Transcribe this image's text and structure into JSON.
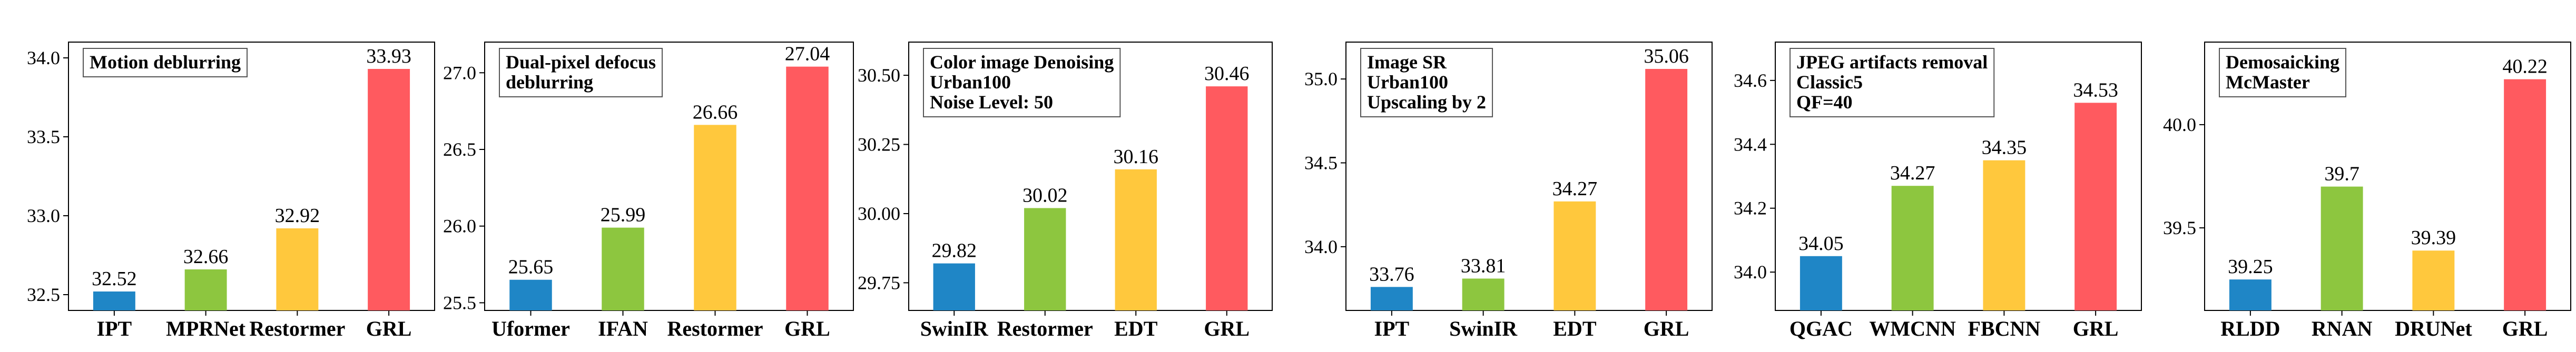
{
  "colors": {
    "blue": "#1f86c6",
    "green": "#8dc63f",
    "yellow": "#ffc83d",
    "red": "#ff5a5f"
  },
  "chart_data": [
    {
      "type": "bar",
      "label_lines": [
        "Motion deblurring"
      ],
      "categories": [
        "IPT",
        "MPRNet",
        "Restormer",
        "GRL"
      ],
      "values": [
        32.52,
        32.66,
        32.92,
        33.93
      ],
      "value_labels": [
        "32.52",
        "32.66",
        "32.92",
        "33.93"
      ],
      "ylim": [
        32.4,
        34.1
      ],
      "yticks": [
        32.5,
        33.0,
        33.5,
        34.0
      ],
      "ytick_labels": [
        "32.5",
        "33.0",
        "33.5",
        "34.0"
      ],
      "grid": false
    },
    {
      "type": "bar",
      "label_lines": [
        "Dual-pixel defocus",
        "deblurring"
      ],
      "categories": [
        "Uformer",
        "IFAN",
        "Restormer",
        "GRL"
      ],
      "values": [
        25.65,
        25.99,
        26.66,
        27.04
      ],
      "value_labels": [
        "25.65",
        "25.99",
        "26.66",
        "27.04"
      ],
      "ylim": [
        25.45,
        27.2
      ],
      "yticks": [
        25.5,
        26.0,
        26.5,
        27.0
      ],
      "ytick_labels": [
        "25.5",
        "26.0",
        "26.5",
        "27.0"
      ],
      "grid": false
    },
    {
      "type": "bar",
      "label_lines": [
        "Color image Denoising",
        "Urban100",
        "Noise Level: 50"
      ],
      "categories": [
        "SwinIR",
        "Restormer",
        "EDT",
        "GRL"
      ],
      "values": [
        29.82,
        30.02,
        30.16,
        30.46
      ],
      "value_labels": [
        "29.82",
        "30.02",
        "30.16",
        "30.46"
      ],
      "ylim": [
        29.65,
        30.62
      ],
      "yticks": [
        29.75,
        30.0,
        30.25,
        30.5
      ],
      "ytick_labels": [
        "29.75",
        "30.00",
        "30.25",
        "30.50"
      ],
      "grid": false
    },
    {
      "type": "bar",
      "label_lines": [
        "Image SR",
        "Urban100",
        "Upscaling by 2"
      ],
      "categories": [
        "IPT",
        "SwinIR",
        "EDT",
        "GRL"
      ],
      "values": [
        33.76,
        33.81,
        34.27,
        35.06
      ],
      "value_labels": [
        "33.76",
        "33.81",
        "34.27",
        "35.06"
      ],
      "ylim": [
        33.62,
        35.22
      ],
      "yticks": [
        34.0,
        34.5,
        35.0
      ],
      "ytick_labels": [
        "34.0",
        "34.5",
        "35.0"
      ],
      "grid": false
    },
    {
      "type": "bar",
      "label_lines": [
        "JPEG artifacts removal",
        "Classic5",
        "QF=40"
      ],
      "categories": [
        "QGAC",
        "WMCNN",
        "FBCNN",
        "GRL"
      ],
      "values": [
        34.05,
        34.27,
        34.35,
        34.53
      ],
      "value_labels": [
        "34.05",
        "34.27",
        "34.35",
        "34.53"
      ],
      "ylim": [
        33.88,
        34.72
      ],
      "yticks": [
        34.0,
        34.2,
        34.4,
        34.6
      ],
      "ytick_labels": [
        "34.0",
        "34.2",
        "34.4",
        "34.6"
      ],
      "grid": false
    },
    {
      "type": "bar",
      "label_lines": [
        "Demosaicking",
        "McMaster"
      ],
      "categories": [
        "RLDD",
        "RNAN",
        "DRUNet",
        "GRL"
      ],
      "values": [
        39.25,
        39.7,
        39.39,
        40.22
      ],
      "value_labels": [
        "39.25",
        "39.7",
        "39.39",
        "40.22"
      ],
      "ylim": [
        39.1,
        40.4
      ],
      "yticks": [
        39.5,
        40.0
      ],
      "ytick_labels": [
        "39.5",
        "40.0"
      ],
      "grid": false
    }
  ]
}
